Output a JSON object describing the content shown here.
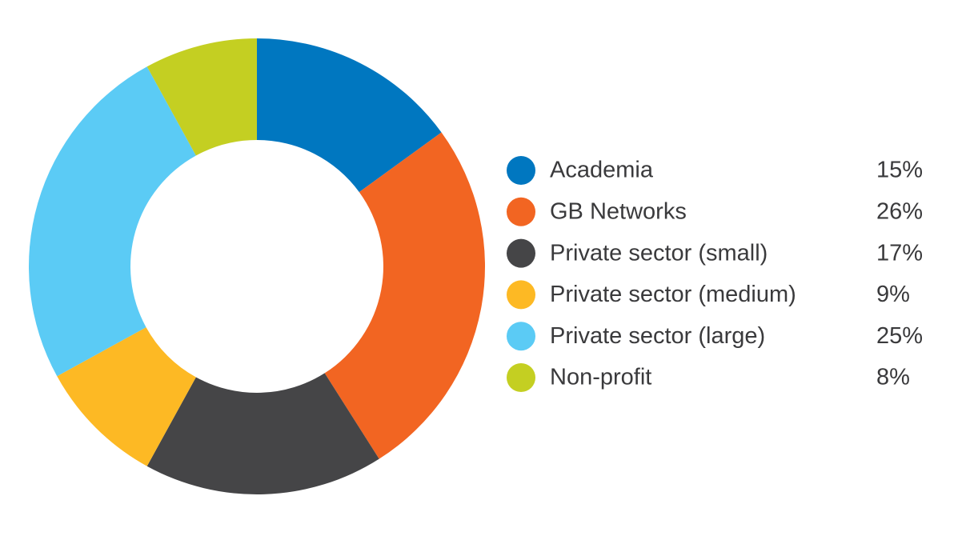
{
  "chart_data": {
    "type": "donut",
    "categories": [
      "Academia",
      "GB Networks",
      "Private sector (small)",
      "Private sector (medium)",
      "Private sector (large)",
      "Non-profit"
    ],
    "values": [
      15,
      26,
      17,
      9,
      25,
      8
    ],
    "value_labels": [
      "15%",
      "26%",
      "17%",
      "9%",
      "25%",
      "8%"
    ],
    "colors": [
      "#0077c0",
      "#f26522",
      "#454547",
      "#fdb924",
      "#5bcbf5",
      "#c4cf22"
    ],
    "legend": "right"
  }
}
